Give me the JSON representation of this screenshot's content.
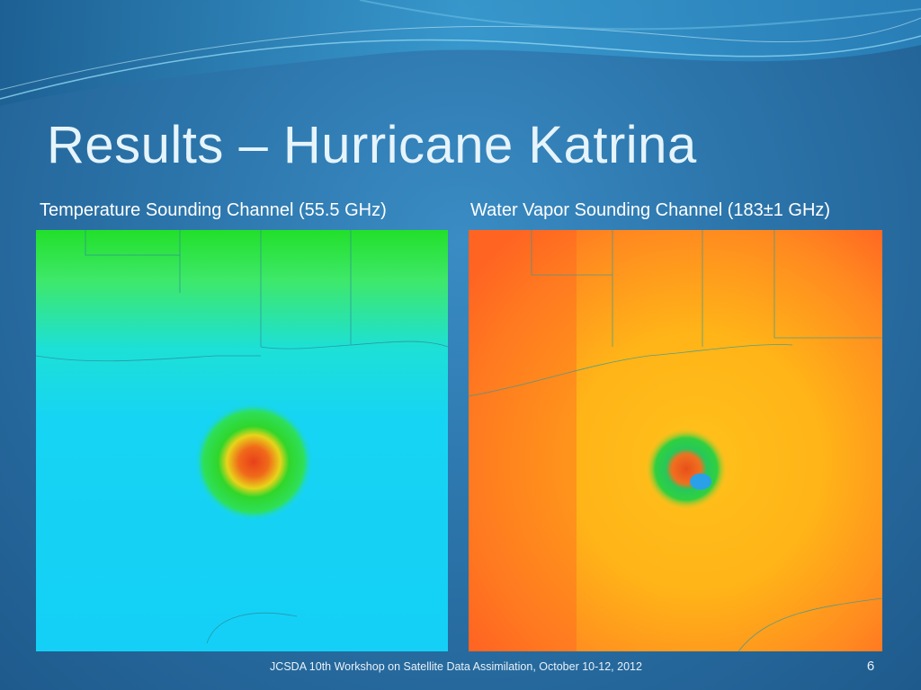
{
  "slide": {
    "title": "Results – Hurricane Katrina",
    "panels": [
      {
        "caption": "Temperature Sounding Channel (55.5 GHz)"
      },
      {
        "caption": "Water Vapor Sounding Channel (183±1 GHz)"
      }
    ],
    "footer": "JCSDA 10th Workshop on Satellite Data Assimilation, October 10-12, 2012",
    "page_number": "6"
  }
}
